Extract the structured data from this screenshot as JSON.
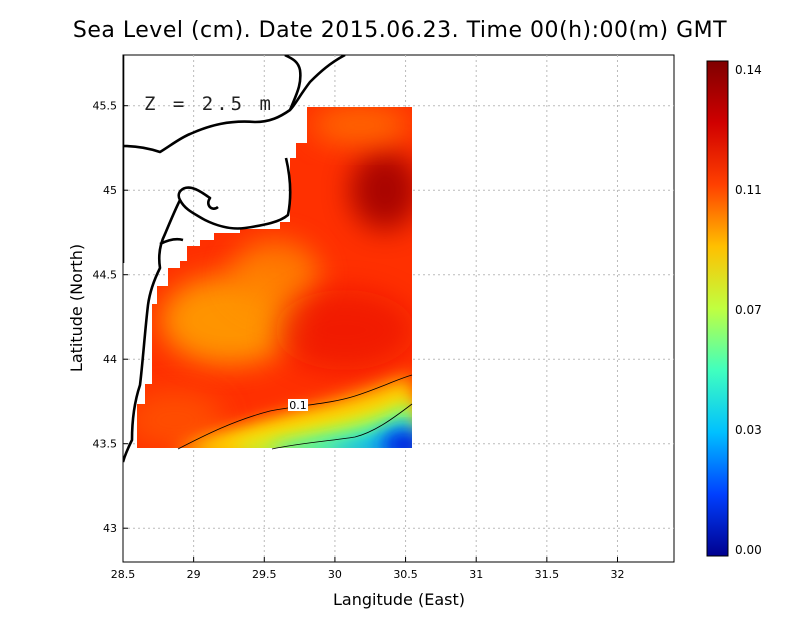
{
  "chart_data": {
    "type": "heatmap",
    "title": "Sea Level (cm). Date 2015.06.23. Time 00(h):00(m) GMT",
    "xlabel": "Langitude (East)",
    "ylabel": "Latitude (North)",
    "annotation": "Z = 2.5 m",
    "xlim": [
      28.5,
      32.4
    ],
    "ylim": [
      42.8,
      45.8
    ],
    "x_ticks": [
      "28.5",
      "29",
      "29.5",
      "30",
      "30.5",
      "31",
      "31.5",
      "32"
    ],
    "y_ticks": [
      "43",
      "43.5",
      "44",
      "44.5",
      "45",
      "45.5"
    ],
    "grid": true,
    "colorbar": {
      "min": 0.0,
      "max": 0.14,
      "labels": [
        "0.14",
        "0.11",
        "0.07",
        "0.03",
        "0.00"
      ],
      "colors": [
        "#00008f",
        "#0040ff",
        "#00c0ff",
        "#40ffbf",
        "#c0ff40",
        "#ffc000",
        "#ff4000",
        "#d00000",
        "#7f0000"
      ]
    },
    "contour_label": "0.1",
    "field_extent": {
      "lon": [
        28.6,
        30.55
      ],
      "lat": [
        43.48,
        45.5
      ]
    },
    "field_samples": [
      {
        "lon": 29.3,
        "lat": 44.3,
        "value": 0.11
      },
      {
        "lon": 29.3,
        "lat": 44.6,
        "value": 0.112
      },
      {
        "lon": 30.2,
        "lat": 45.0,
        "value": 0.13
      },
      {
        "lon": 30.0,
        "lat": 44.2,
        "value": 0.123
      },
      {
        "lon": 29.0,
        "lat": 43.7,
        "value": 0.118
      },
      {
        "lon": 30.0,
        "lat": 43.55,
        "value": 0.072
      },
      {
        "lon": 30.5,
        "lat": 43.55,
        "value": 0.03
      }
    ]
  }
}
